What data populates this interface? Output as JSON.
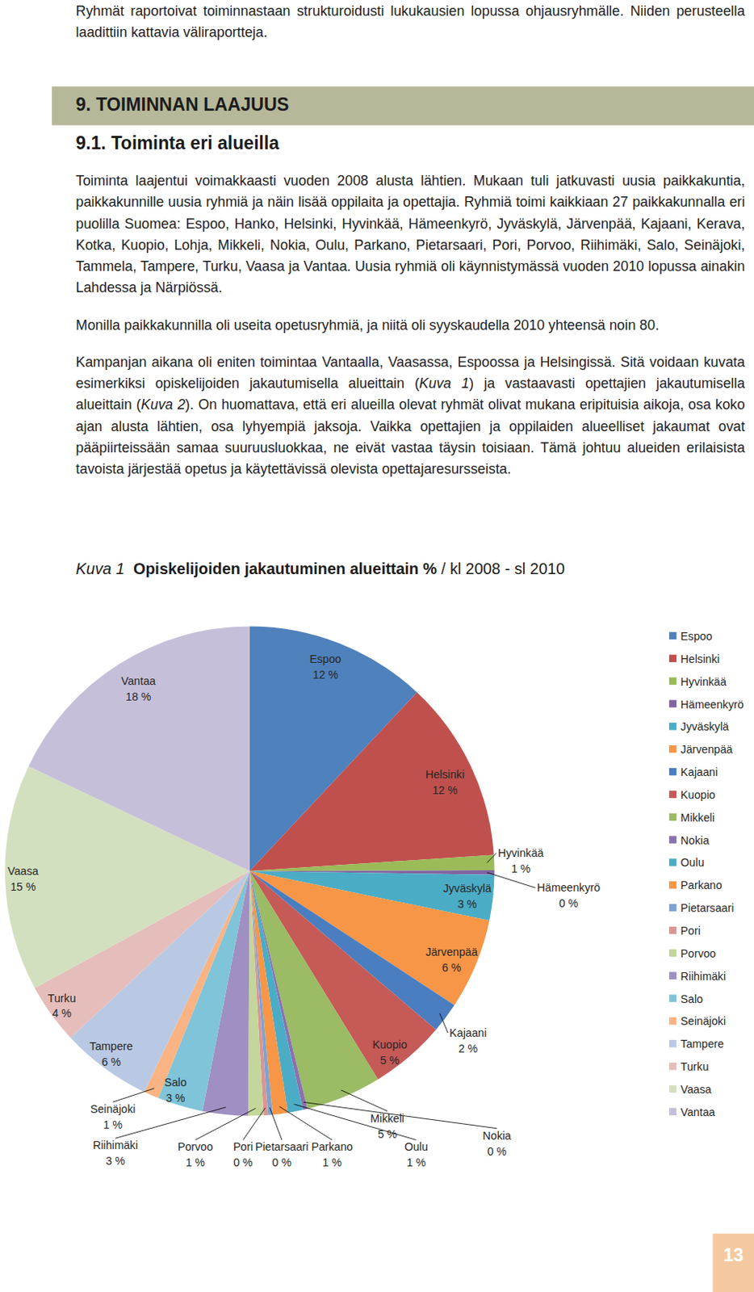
{
  "page": {
    "intro": "Ryhmät raportoivat toiminnastaan strukturoidusti lukukausien lopussa ohjausryhmälle. Niiden perusteella laadittiin kattavia väliraportteja.",
    "heading": "9. TOIMINNAN LAAJUUS",
    "subheading": "9.1. Toiminta eri alueilla",
    "paragraphs": [
      [
        {
          "text": "Toiminta laajentui voimakkaasti vuoden 2008 alusta lähtien. Mukaan tuli jatkuvasti uusia paikkakuntia, paikkakunnille uusia ryhmiä ja näin lisää oppilaita ja opettajia. Ryhmiä toimi kaikkiaan 27 paikkakunnalla eri puolilla Suomea: Espoo, Hanko, Helsinki, Hyvinkää, Hämeenkyrö, Jyväskylä, Järvenpää, Kajaani, Kerava, Kotka, Kuopio, Lohja, Mikkeli, Nokia, Oulu, Parkano, Pietarsaari, Pori, Porvoo, Riihimäki, Salo, Seinäjoki, Tammela, Tampere, Turku, Vaasa ja Vantaa. Uusia ryhmiä oli käynnistymässä vuoden 2010 lopussa ainakin Lahdessa ja Närpiössä."
        }
      ],
      [
        {
          "text": "Monilla paikkakunnilla oli useita opetusryhmiä, ja niitä oli syyskaudella 2010 yhteensä noin 80."
        }
      ],
      [
        {
          "text": "Kampanjan aikana oli eniten toimintaa Vantaalla, Vaasassa, Espoossa ja Helsingissä. Sitä voidaan kuvata esimerkiksi opiskelijoiden jakautumisella alueittain ("
        },
        {
          "text": "Kuva 1",
          "style": "italic"
        },
        {
          "text": ") ja vastaavasti opettajien jakautumisella alueittain ("
        },
        {
          "text": "Kuva 2",
          "style": "italic"
        },
        {
          "text": "). On huomattava, että eri alueilla olevat ryhmät olivat mukana eripituisia aikoja, osa koko ajan alusta lähtien, osa lyhyempiä jaksoja. Vaikka opettajien ja oppilaiden alueelliset jakaumat ovat pääpiirteissään samaa suuruusluokkaa, ne eivät vastaa täysin toisiaan. Tämä johtuu alueiden erilaisista tavoista järjestää opetus ja käytettävissä olevista opettajaresursseista."
        }
      ]
    ],
    "figure_label": "Kuva 1",
    "page_number": "13"
  },
  "chart_data": {
    "type": "pie",
    "title": "Opiskelijoiden jakautuminen alueittain %",
    "subtitle": "/ kl 2008 - sl 2010",
    "categories": [
      "Espoo",
      "Helsinki",
      "Hyvinkää",
      "Hämeenkyrö",
      "Jyväskylä",
      "Järvenpää",
      "Kajaani",
      "Kuopio",
      "Mikkeli",
      "Nokia",
      "Oulu",
      "Parkano",
      "Pietarsaari",
      "Pori",
      "Porvoo",
      "Riihimäki",
      "Salo",
      "Seinäjoki",
      "Tampere",
      "Turku",
      "Vaasa",
      "Vantaa"
    ],
    "values": [
      12,
      12,
      1,
      0.3,
      3,
      6,
      2,
      5,
      5,
      0.3,
      1,
      1,
      0.3,
      0.3,
      1,
      3,
      3,
      1,
      6,
      4,
      15,
      18
    ],
    "value_labels": [
      "12 %",
      "12 %",
      "1 %",
      "0 %",
      "3 %",
      "6 %",
      "2 %",
      "5 %",
      "5 %",
      "0 %",
      "1 %",
      "1 %",
      "0 %",
      "0 %",
      "1 %",
      "3 %",
      "3 %",
      "1 %",
      "6 %",
      "4 %",
      "15 %",
      "18 %"
    ],
    "colors": [
      "#4f81bd",
      "#c0504d",
      "#9bbb59",
      "#8064a2",
      "#4bacc6",
      "#f79646",
      "#4a7ec0",
      "#c55a57",
      "#9bbb65",
      "#8a72ae",
      "#4bacc6",
      "#f79646",
      "#7ea3d0",
      "#d99694",
      "#c3d69b",
      "#a08fc2",
      "#7fc4d9",
      "#fab383",
      "#b9c9e4",
      "#e5bdbb",
      "#d3e0bf",
      "#c6bfd9"
    ],
    "legend": "right",
    "data_labels": true
  }
}
